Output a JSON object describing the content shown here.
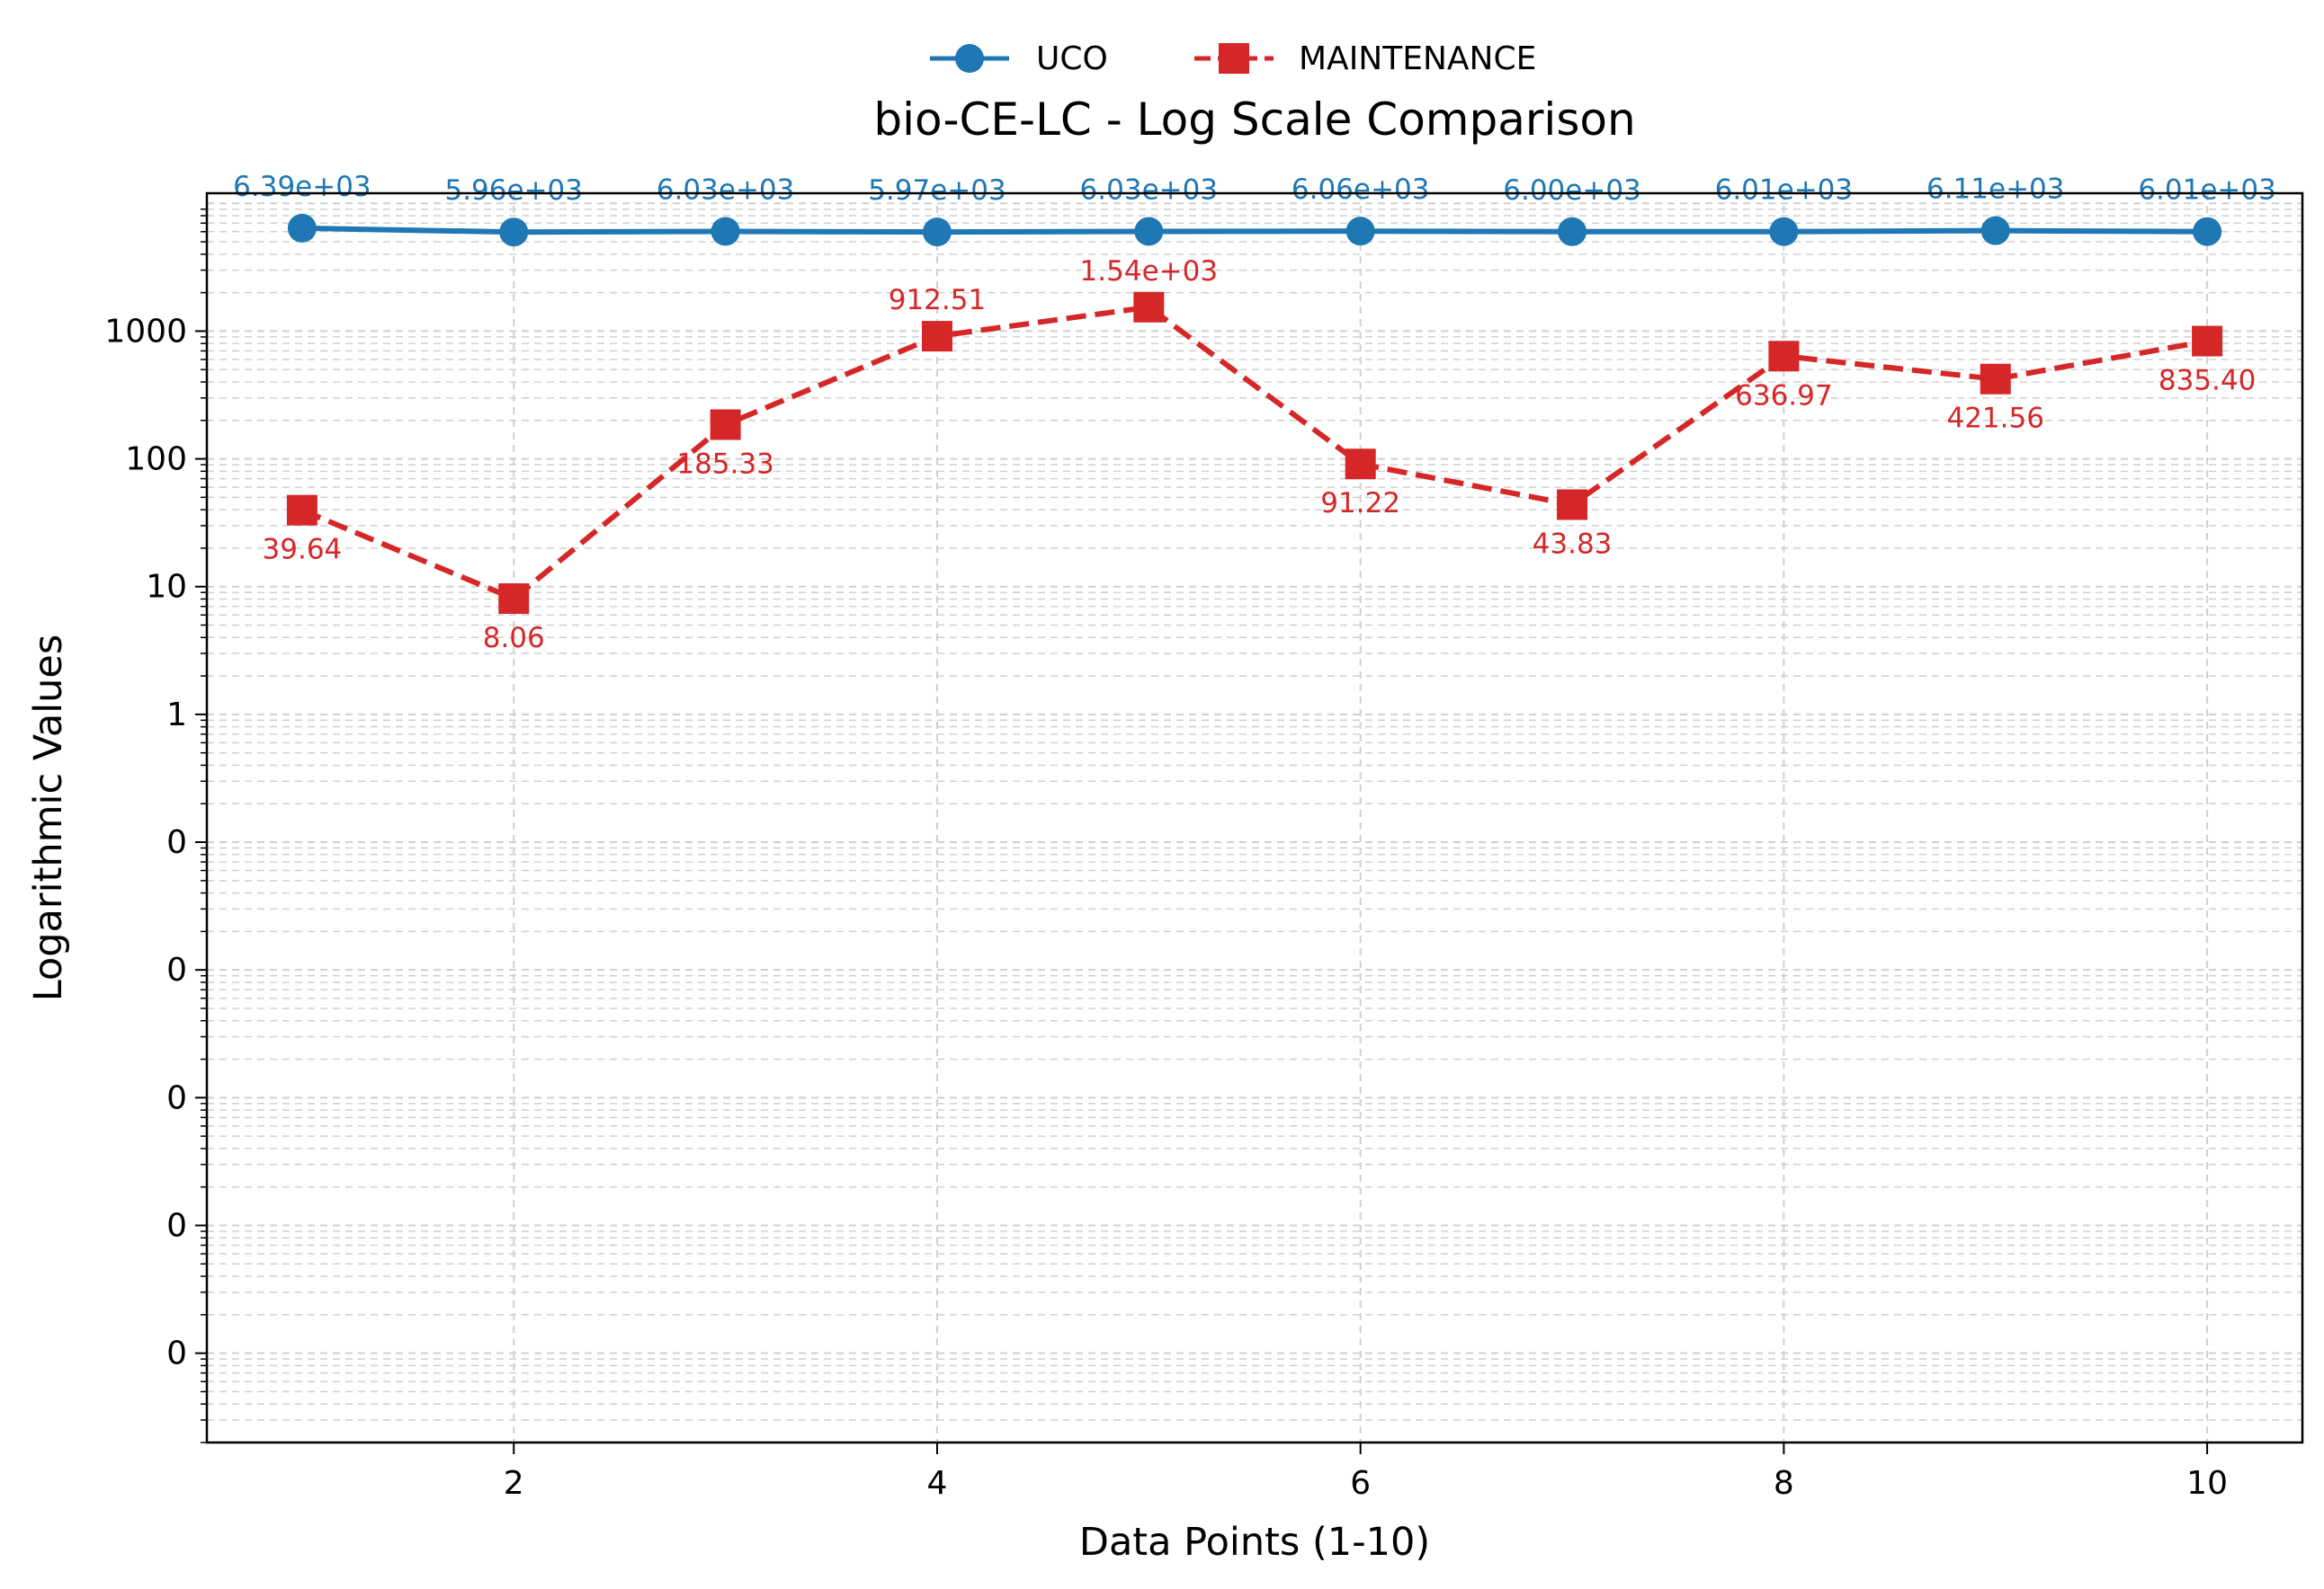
{
  "chart_data": {
    "type": "line",
    "title": "bio-CE-LC - Log Scale Comparison",
    "xlabel": "Data Points (1-10)",
    "ylabel": "Logarithmic Values",
    "y_scale": "log",
    "grid": true,
    "legend_position": "top-center",
    "x": [
      1,
      2,
      3,
      4,
      5,
      6,
      7,
      8,
      9,
      10
    ],
    "x_ticks": [
      2,
      4,
      6,
      8,
      10
    ],
    "xlim": [
      0.55,
      10.45
    ],
    "ylim": [
      2e-06,
      12000
    ],
    "y_ticks": [
      1e-05,
      0.0001,
      0.001,
      0.01,
      0.1,
      1,
      10,
      100,
      1000
    ],
    "y_tick_labels": [
      "0",
      "0",
      "0",
      "0",
      "0",
      "1",
      "10",
      "100",
      "1000"
    ],
    "series": [
      {
        "name": "UCO",
        "color": "#1f77b4",
        "marker": "circle",
        "line_style": "solid",
        "values": [
          6390,
          5960,
          6030,
          5970,
          6030,
          6060,
          6000,
          6010,
          6110,
          6010
        ],
        "labels": [
          "6.39e+03",
          "5.96e+03",
          "6.03e+03",
          "5.97e+03",
          "6.03e+03",
          "6.06e+03",
          "6.00e+03",
          "6.01e+03",
          "6.11e+03",
          "6.01e+03"
        ]
      },
      {
        "name": "MAINTENANCE",
        "color": "#d62728",
        "marker": "square",
        "line_style": "dashed",
        "values": [
          39.64,
          8.06,
          185.33,
          912.51,
          1540,
          91.22,
          43.83,
          636.97,
          421.56,
          835.4
        ],
        "labels": [
          "39.64",
          "8.06",
          "185.33",
          "912.51",
          "1.54e+03",
          "91.22",
          "43.83",
          "636.97",
          "421.56",
          "835.40"
        ]
      }
    ]
  }
}
